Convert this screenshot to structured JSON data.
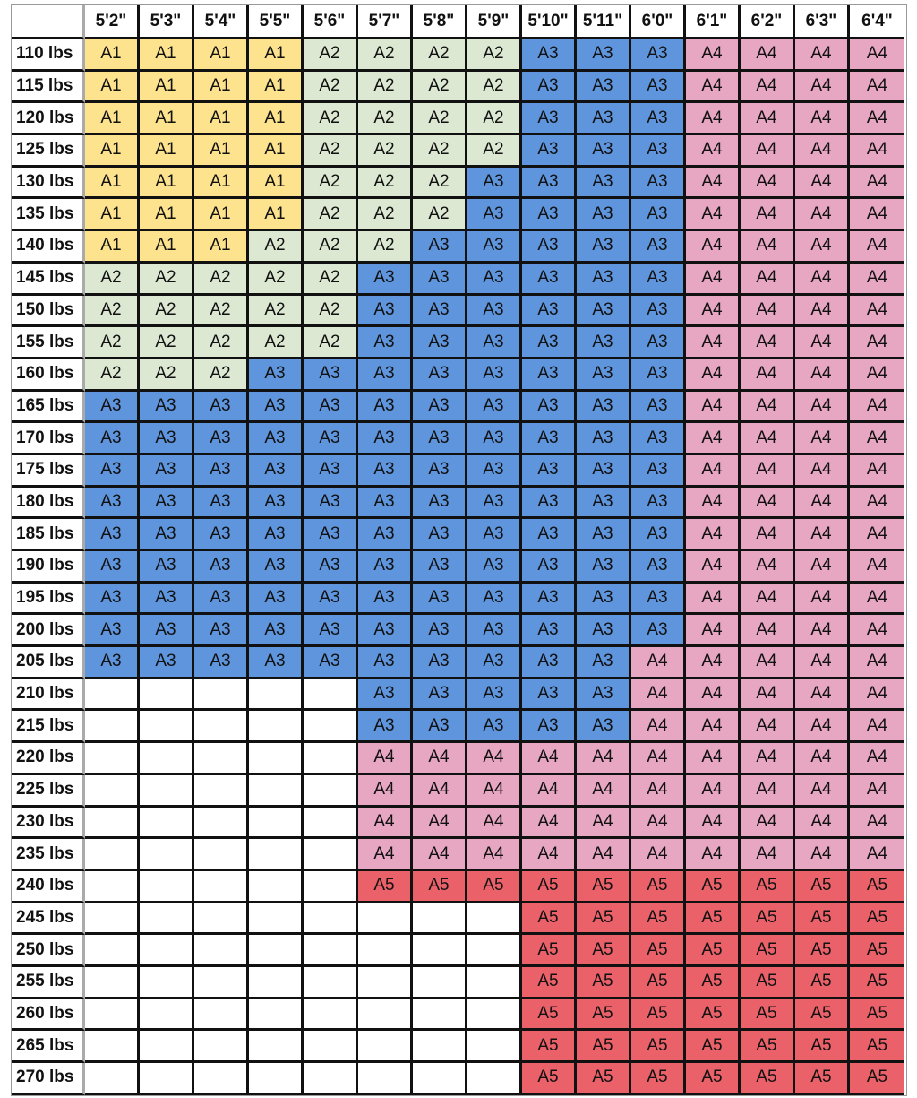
{
  "colors": {
    "A1": "#fde38d",
    "A2": "#dde8d3",
    "A3": "#5e95dd",
    "A4": "#e7a6c1",
    "A5": "#ea6169",
    "": "#ffffff"
  },
  "corner": "",
  "heights": [
    "5'2\"",
    "5'3\"",
    "5'4\"",
    "5'5\"",
    "5'6\"",
    "5'7\"",
    "5'8\"",
    "5'9\"",
    "5'10\"",
    "5'11\"",
    "6'0\"",
    "6'1\"",
    "6'2\"",
    "6'3\"",
    "6'4\""
  ],
  "rows": [
    {
      "weight": "110 lbs",
      "sizes": [
        "A1",
        "A1",
        "A1",
        "A1",
        "A2",
        "A2",
        "A2",
        "A2",
        "A3",
        "A3",
        "A3",
        "A4",
        "A4",
        "A4",
        "A4"
      ]
    },
    {
      "weight": "115 lbs",
      "sizes": [
        "A1",
        "A1",
        "A1",
        "A1",
        "A2",
        "A2",
        "A2",
        "A2",
        "A3",
        "A3",
        "A3",
        "A4",
        "A4",
        "A4",
        "A4"
      ]
    },
    {
      "weight": "120 lbs",
      "sizes": [
        "A1",
        "A1",
        "A1",
        "A1",
        "A2",
        "A2",
        "A2",
        "A2",
        "A3",
        "A3",
        "A3",
        "A4",
        "A4",
        "A4",
        "A4"
      ]
    },
    {
      "weight": "125 lbs",
      "sizes": [
        "A1",
        "A1",
        "A1",
        "A1",
        "A2",
        "A2",
        "A2",
        "A2",
        "A3",
        "A3",
        "A3",
        "A4",
        "A4",
        "A4",
        "A4"
      ]
    },
    {
      "weight": "130 lbs",
      "sizes": [
        "A1",
        "A1",
        "A1",
        "A1",
        "A2",
        "A2",
        "A2",
        "A3",
        "A3",
        "A3",
        "A3",
        "A4",
        "A4",
        "A4",
        "A4"
      ]
    },
    {
      "weight": "135 lbs",
      "sizes": [
        "A1",
        "A1",
        "A1",
        "A1",
        "A2",
        "A2",
        "A2",
        "A3",
        "A3",
        "A3",
        "A3",
        "A4",
        "A4",
        "A4",
        "A4"
      ]
    },
    {
      "weight": "140 lbs",
      "sizes": [
        "A1",
        "A1",
        "A1",
        "A2",
        "A2",
        "A2",
        "A3",
        "A3",
        "A3",
        "A3",
        "A3",
        "A4",
        "A4",
        "A4",
        "A4"
      ]
    },
    {
      "weight": "145 lbs",
      "sizes": [
        "A2",
        "A2",
        "A2",
        "A2",
        "A2",
        "A3",
        "A3",
        "A3",
        "A3",
        "A3",
        "A3",
        "A4",
        "A4",
        "A4",
        "A4"
      ]
    },
    {
      "weight": "150 lbs",
      "sizes": [
        "A2",
        "A2",
        "A2",
        "A2",
        "A2",
        "A3",
        "A3",
        "A3",
        "A3",
        "A3",
        "A3",
        "A4",
        "A4",
        "A4",
        "A4"
      ]
    },
    {
      "weight": "155 lbs",
      "sizes": [
        "A2",
        "A2",
        "A2",
        "A2",
        "A2",
        "A3",
        "A3",
        "A3",
        "A3",
        "A3",
        "A3",
        "A4",
        "A4",
        "A4",
        "A4"
      ]
    },
    {
      "weight": "160 lbs",
      "sizes": [
        "A2",
        "A2",
        "A2",
        "A3",
        "A3",
        "A3",
        "A3",
        "A3",
        "A3",
        "A3",
        "A3",
        "A4",
        "A4",
        "A4",
        "A4"
      ]
    },
    {
      "weight": "165 lbs",
      "sizes": [
        "A3",
        "A3",
        "A3",
        "A3",
        "A3",
        "A3",
        "A3",
        "A3",
        "A3",
        "A3",
        "A3",
        "A4",
        "A4",
        "A4",
        "A4"
      ]
    },
    {
      "weight": "170 lbs",
      "sizes": [
        "A3",
        "A3",
        "A3",
        "A3",
        "A3",
        "A3",
        "A3",
        "A3",
        "A3",
        "A3",
        "A3",
        "A4",
        "A4",
        "A4",
        "A4"
      ]
    },
    {
      "weight": "175 lbs",
      "sizes": [
        "A3",
        "A3",
        "A3",
        "A3",
        "A3",
        "A3",
        "A3",
        "A3",
        "A3",
        "A3",
        "A3",
        "A4",
        "A4",
        "A4",
        "A4"
      ]
    },
    {
      "weight": "180 lbs",
      "sizes": [
        "A3",
        "A3",
        "A3",
        "A3",
        "A3",
        "A3",
        "A3",
        "A3",
        "A3",
        "A3",
        "A3",
        "A4",
        "A4",
        "A4",
        "A4"
      ]
    },
    {
      "weight": "185 lbs",
      "sizes": [
        "A3",
        "A3",
        "A3",
        "A3",
        "A3",
        "A3",
        "A3",
        "A3",
        "A3",
        "A3",
        "A3",
        "A4",
        "A4",
        "A4",
        "A4"
      ]
    },
    {
      "weight": "190 lbs",
      "sizes": [
        "A3",
        "A3",
        "A3",
        "A3",
        "A3",
        "A3",
        "A3",
        "A3",
        "A3",
        "A3",
        "A3",
        "A4",
        "A4",
        "A4",
        "A4"
      ]
    },
    {
      "weight": "195 lbs",
      "sizes": [
        "A3",
        "A3",
        "A3",
        "A3",
        "A3",
        "A3",
        "A3",
        "A3",
        "A3",
        "A3",
        "A3",
        "A4",
        "A4",
        "A4",
        "A4"
      ]
    },
    {
      "weight": "200 lbs",
      "sizes": [
        "A3",
        "A3",
        "A3",
        "A3",
        "A3",
        "A3",
        "A3",
        "A3",
        "A3",
        "A3",
        "A3",
        "A4",
        "A4",
        "A4",
        "A4"
      ]
    },
    {
      "weight": "205 lbs",
      "sizes": [
        "A3",
        "A3",
        "A3",
        "A3",
        "A3",
        "A3",
        "A3",
        "A3",
        "A3",
        "A3",
        "A4",
        "A4",
        "A4",
        "A4",
        "A4"
      ]
    },
    {
      "weight": "210 lbs",
      "sizes": [
        "",
        "",
        "",
        "",
        "",
        "A3",
        "A3",
        "A3",
        "A3",
        "A3",
        "A4",
        "A4",
        "A4",
        "A4",
        "A4"
      ]
    },
    {
      "weight": "215 lbs",
      "sizes": [
        "",
        "",
        "",
        "",
        "",
        "A3",
        "A3",
        "A3",
        "A3",
        "A3",
        "A4",
        "A4",
        "A4",
        "A4",
        "A4"
      ]
    },
    {
      "weight": "220 lbs",
      "sizes": [
        "",
        "",
        "",
        "",
        "",
        "A4",
        "A4",
        "A4",
        "A4",
        "A4",
        "A4",
        "A4",
        "A4",
        "A4",
        "A4"
      ]
    },
    {
      "weight": "225 lbs",
      "sizes": [
        "",
        "",
        "",
        "",
        "",
        "A4",
        "A4",
        "A4",
        "A4",
        "A4",
        "A4",
        "A4",
        "A4",
        "A4",
        "A4"
      ]
    },
    {
      "weight": "230 lbs",
      "sizes": [
        "",
        "",
        "",
        "",
        "",
        "A4",
        "A4",
        "A4",
        "A4",
        "A4",
        "A4",
        "A4",
        "A4",
        "A4",
        "A4"
      ]
    },
    {
      "weight": "235 lbs",
      "sizes": [
        "",
        "",
        "",
        "",
        "",
        "A4",
        "A4",
        "A4",
        "A4",
        "A4",
        "A4",
        "A4",
        "A4",
        "A4",
        "A4"
      ]
    },
    {
      "weight": "240 lbs",
      "sizes": [
        "",
        "",
        "",
        "",
        "",
        "A5",
        "A5",
        "A5",
        "A5",
        "A5",
        "A5",
        "A5",
        "A5",
        "A5",
        "A5"
      ]
    },
    {
      "weight": "245 lbs",
      "sizes": [
        "",
        "",
        "",
        "",
        "",
        "",
        "",
        "",
        "A5",
        "A5",
        "A5",
        "A5",
        "A5",
        "A5",
        "A5"
      ]
    },
    {
      "weight": "250 lbs",
      "sizes": [
        "",
        "",
        "",
        "",
        "",
        "",
        "",
        "",
        "A5",
        "A5",
        "A5",
        "A5",
        "A5",
        "A5",
        "A5"
      ]
    },
    {
      "weight": "255 lbs",
      "sizes": [
        "",
        "",
        "",
        "",
        "",
        "",
        "",
        "",
        "A5",
        "A5",
        "A5",
        "A5",
        "A5",
        "A5",
        "A5"
      ]
    },
    {
      "weight": "260 lbs",
      "sizes": [
        "",
        "",
        "",
        "",
        "",
        "",
        "",
        "",
        "A5",
        "A5",
        "A5",
        "A5",
        "A5",
        "A5",
        "A5"
      ]
    },
    {
      "weight": "265 lbs",
      "sizes": [
        "",
        "",
        "",
        "",
        "",
        "",
        "",
        "",
        "A5",
        "A5",
        "A5",
        "A5",
        "A5",
        "A5",
        "A5"
      ]
    },
    {
      "weight": "270 lbs",
      "sizes": [
        "",
        "",
        "",
        "",
        "",
        "",
        "",
        "",
        "A5",
        "A5",
        "A5",
        "A5",
        "A5",
        "A5",
        "A5"
      ]
    }
  ]
}
